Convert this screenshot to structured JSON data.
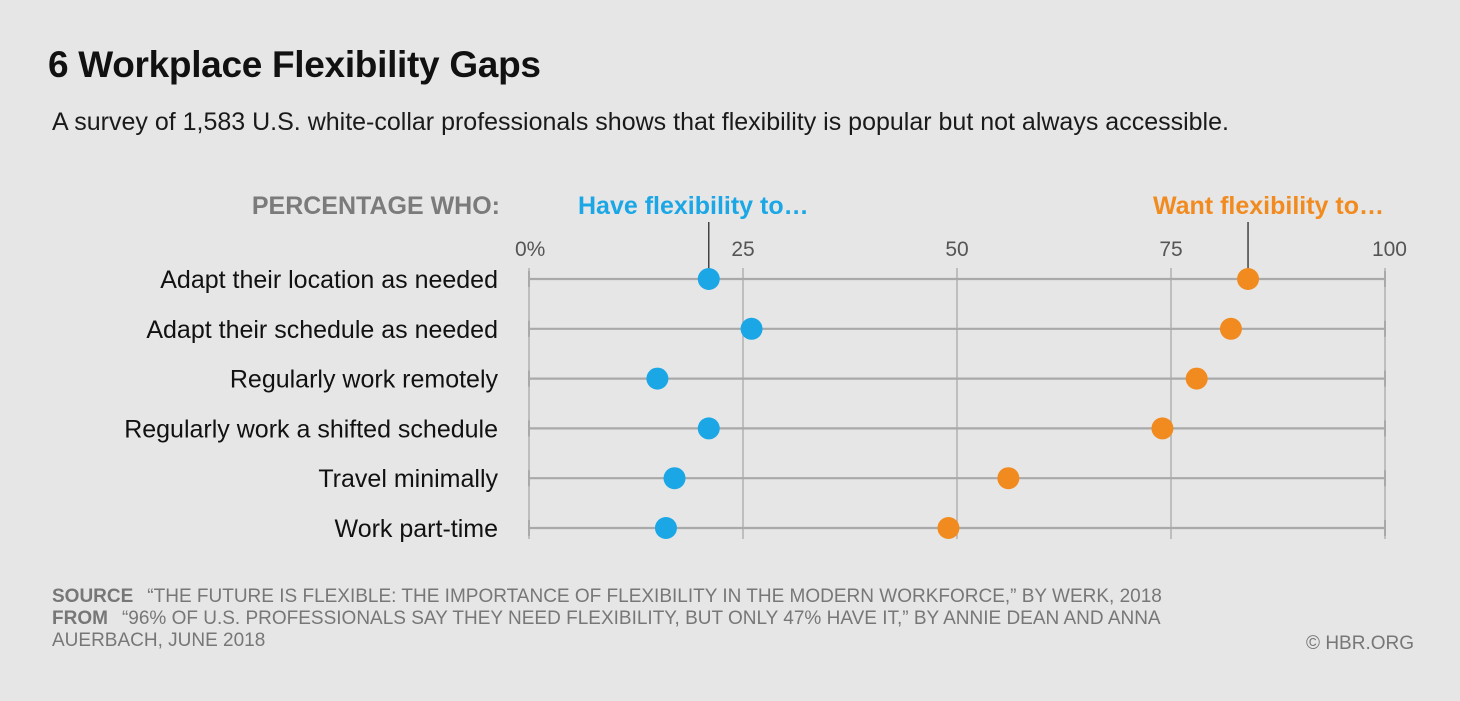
{
  "header": {
    "title": "6 Workplace Flexibility Gaps",
    "subtitle": "A survey of 1,583 U.S. white-collar professionals shows that flexibility is popular but not always accessible."
  },
  "legend": {
    "prefix": "PERCENTAGE WHO:",
    "have_label": "Have flexibility to…",
    "want_label": "Want flexibility to…"
  },
  "colors": {
    "have": "#1ba7e6",
    "want": "#f28b1f",
    "grid": "#a9a9a9",
    "legend_prefix": "#7b7b7b"
  },
  "chart_data": {
    "type": "dot",
    "xlim": [
      0,
      100
    ],
    "ticks": [
      "0%",
      "25",
      "50",
      "75",
      "100"
    ],
    "tick_values": [
      0,
      25,
      50,
      75,
      100
    ],
    "categories": [
      "Adapt their location as needed",
      "Adapt their schedule as needed",
      "Regularly work remotely",
      "Regularly work a shifted schedule",
      "Travel minimally",
      "Work part-time"
    ],
    "series": [
      {
        "name": "Have flexibility to…",
        "values": [
          21,
          26,
          15,
          21,
          17,
          16
        ]
      },
      {
        "name": "Want flexibility to…",
        "values": [
          84,
          82,
          78,
          74,
          56,
          49
        ]
      }
    ]
  },
  "footer": {
    "source_key": "SOURCE",
    "source_text": "“THE FUTURE IS FLEXIBLE: THE IMPORTANCE OF FLEXIBILITY IN THE MODERN WORKFORCE,” BY WERK, 2018",
    "from_key": "FROM",
    "from_text": "“96% OF U.S. PROFESSIONALS SAY THEY NEED FLEXIBILITY, BUT ONLY 47% HAVE IT,” BY ANNIE DEAN AND ANNA AUERBACH, JUNE 2018",
    "credit": "© HBR.ORG"
  }
}
